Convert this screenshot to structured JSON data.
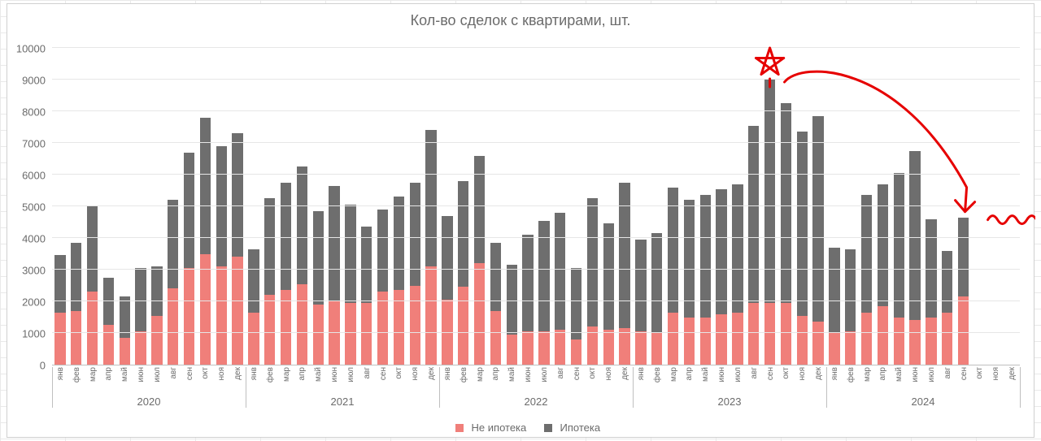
{
  "title": "Кол-во сделок с квартирами, шт.",
  "chart": {
    "type": "stacked-bar",
    "background_color": "#ffffff",
    "grid_color": "#e6e6e6",
    "axis_color": "#bfbfbf",
    "text_color": "#6b6b6b",
    "title_fontsize": 18,
    "label_fontsize": 13,
    "month_label_fontsize": 10,
    "ylim": [
      0,
      10000
    ],
    "ytick_step": 1000,
    "bar_width_ratio": 0.68,
    "series": [
      {
        "name": "Не ипотека",
        "color": "#f07f7a"
      },
      {
        "name": "Ипотека",
        "color": "#6e6e6e"
      }
    ],
    "years": [
      {
        "year": "2020",
        "months": [
          {
            "m": "янв",
            "s1": 1650,
            "s2": 1800
          },
          {
            "m": "фев",
            "s1": 1700,
            "s2": 2150
          },
          {
            "m": "мар",
            "s1": 2300,
            "s2": 2700
          },
          {
            "m": "апр",
            "s1": 1250,
            "s2": 1500
          },
          {
            "m": "май",
            "s1": 850,
            "s2": 1300
          },
          {
            "m": "июн",
            "s1": 1050,
            "s2": 2000
          },
          {
            "m": "июл",
            "s1": 1550,
            "s2": 1550
          },
          {
            "m": "авг",
            "s1": 2400,
            "s2": 2800
          },
          {
            "m": "сен",
            "s1": 3050,
            "s2": 3650
          },
          {
            "m": "окт",
            "s1": 3500,
            "s2": 4300
          },
          {
            "m": "ноя",
            "s1": 3100,
            "s2": 3800
          },
          {
            "m": "дек",
            "s1": 3400,
            "s2": 3900
          }
        ]
      },
      {
        "year": "2021",
        "months": [
          {
            "m": "янв",
            "s1": 1650,
            "s2": 2000
          },
          {
            "m": "фев",
            "s1": 2200,
            "s2": 3050
          },
          {
            "m": "мар",
            "s1": 2350,
            "s2": 3400
          },
          {
            "m": "апр",
            "s1": 2550,
            "s2": 3700
          },
          {
            "m": "май",
            "s1": 1900,
            "s2": 2950
          },
          {
            "m": "июн",
            "s1": 2000,
            "s2": 3650
          },
          {
            "m": "июл",
            "s1": 1950,
            "s2": 3100
          },
          {
            "m": "авг",
            "s1": 1950,
            "s2": 2400
          },
          {
            "m": "сен",
            "s1": 2300,
            "s2": 2600
          },
          {
            "m": "окт",
            "s1": 2350,
            "s2": 2950
          },
          {
            "m": "ноя",
            "s1": 2500,
            "s2": 3250
          },
          {
            "m": "дек",
            "s1": 3100,
            "s2": 4300
          }
        ]
      },
      {
        "year": "2022",
        "months": [
          {
            "m": "янв",
            "s1": 2050,
            "s2": 2650
          },
          {
            "m": "фев",
            "s1": 2450,
            "s2": 3350
          },
          {
            "m": "мар",
            "s1": 3200,
            "s2": 3400
          },
          {
            "m": "апр",
            "s1": 1700,
            "s2": 2150
          },
          {
            "m": "май",
            "s1": 950,
            "s2": 2200
          },
          {
            "m": "июн",
            "s1": 1050,
            "s2": 3050
          },
          {
            "m": "июл",
            "s1": 1050,
            "s2": 3500
          },
          {
            "m": "авг",
            "s1": 1100,
            "s2": 3700
          },
          {
            "m": "сен",
            "s1": 800,
            "s2": 2250
          },
          {
            "m": "окт",
            "s1": 1200,
            "s2": 4050
          },
          {
            "m": "ноя",
            "s1": 1100,
            "s2": 3350
          },
          {
            "m": "дек",
            "s1": 1150,
            "s2": 4600
          }
        ]
      },
      {
        "year": "2023",
        "months": [
          {
            "m": "янв",
            "s1": 1050,
            "s2": 2900
          },
          {
            "m": "фев",
            "s1": 1000,
            "s2": 3150
          },
          {
            "m": "мар",
            "s1": 1650,
            "s2": 3950
          },
          {
            "m": "апр",
            "s1": 1500,
            "s2": 3700
          },
          {
            "m": "май",
            "s1": 1500,
            "s2": 3850
          },
          {
            "m": "июн",
            "s1": 1600,
            "s2": 3950
          },
          {
            "m": "июл",
            "s1": 1650,
            "s2": 4050
          },
          {
            "m": "авг",
            "s1": 1950,
            "s2": 5600
          },
          {
            "m": "сен",
            "s1": 1950,
            "s2": 7050
          },
          {
            "m": "окт",
            "s1": 1950,
            "s2": 6300
          },
          {
            "m": "ноя",
            "s1": 1550,
            "s2": 5800
          },
          {
            "m": "дек",
            "s1": 1350,
            "s2": 6500
          }
        ]
      },
      {
        "year": "2024",
        "months": [
          {
            "m": "янв",
            "s1": 1000,
            "s2": 2700
          },
          {
            "m": "фев",
            "s1": 1050,
            "s2": 2600
          },
          {
            "m": "мар",
            "s1": 1650,
            "s2": 3700
          },
          {
            "m": "апр",
            "s1": 1850,
            "s2": 3850
          },
          {
            "m": "май",
            "s1": 1500,
            "s2": 4550
          },
          {
            "m": "июн",
            "s1": 1400,
            "s2": 5350
          },
          {
            "m": "июл",
            "s1": 1500,
            "s2": 3100
          },
          {
            "m": "авг",
            "s1": 1650,
            "s2": 1950
          },
          {
            "m": "сен",
            "s1": 2150,
            "s2": 2500
          },
          {
            "m": "окт",
            "s1": null,
            "s2": null
          },
          {
            "m": "ноя",
            "s1": null,
            "s2": null
          },
          {
            "m": "дек",
            "s1": null,
            "s2": null
          }
        ]
      }
    ]
  },
  "annotation": {
    "stroke": "#e60000",
    "stroke_width": 3
  },
  "legend": {
    "items": [
      {
        "swatch": "#f07f7a",
        "label": "Не ипотека"
      },
      {
        "swatch": "#6e6e6e",
        "label": "Ипотека"
      }
    ]
  }
}
